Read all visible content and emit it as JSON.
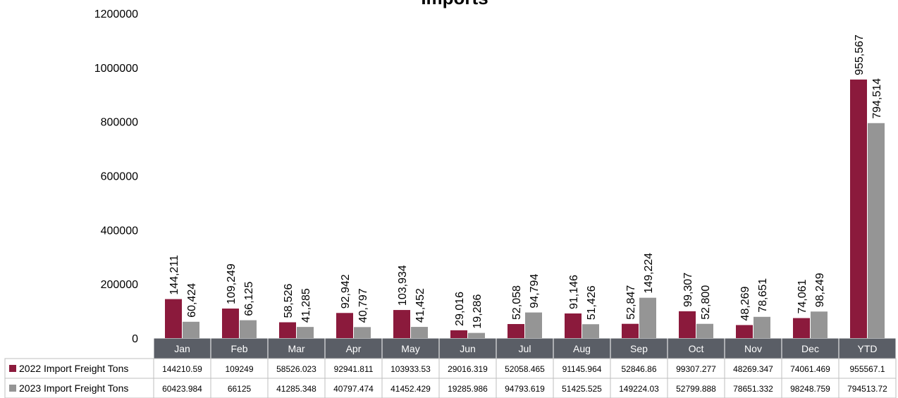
{
  "title": "Imports",
  "chart_data": {
    "type": "bar",
    "title": "Imports",
    "categories": [
      "Jan",
      "Feb",
      "Mar",
      "Apr",
      "May",
      "Jun",
      "Jul",
      "Aug",
      "Sep",
      "Oct",
      "Nov",
      "Dec",
      "YTD"
    ],
    "ylim": [
      0,
      1200000
    ],
    "yticks": [
      "0",
      "200000",
      "400000",
      "600000",
      "800000",
      "1000000",
      "1200000"
    ],
    "grid": false,
    "legend": "data-table-left",
    "series": [
      {
        "name": "2022 Import Freight Tons",
        "color": "#8B1A3C",
        "values": [
          144210.59,
          109249,
          58526.023,
          92941.811,
          103933.53,
          29016.319,
          52058.465,
          91145.964,
          52846.86,
          99307.277,
          48269.347,
          74061.469,
          955567.1
        ],
        "table_values": [
          "144210.59",
          "109249",
          "58526.023",
          "92941.811",
          "103933.53",
          "29016.319",
          "52058.465",
          "91145.964",
          "52846.86",
          "99307.277",
          "48269.347",
          "74061.469",
          "955567.1"
        ],
        "labels": [
          "144,211",
          "109,249",
          "58,526",
          "92,942",
          "103,934",
          "29,016",
          "52,058",
          "91,146",
          "52,847",
          "99,307",
          "48,269",
          "74,061",
          "955,567"
        ]
      },
      {
        "name": "2023 Import Freight Tons",
        "color": "#959595",
        "values": [
          60423.984,
          66125,
          41285.348,
          40797.474,
          41452.429,
          19285.986,
          94793.619,
          51425.525,
          149224.03,
          52799.888,
          78651.332,
          98248.759,
          794513.72
        ],
        "table_values": [
          "60423.984",
          "66125",
          "41285.348",
          "40797.474",
          "41452.429",
          "19285.986",
          "94793.619",
          "51425.525",
          "149224.03",
          "52799.888",
          "78651.332",
          "98248.759",
          "794513.72"
        ],
        "labels": [
          "60,424",
          "66,125",
          "41,285",
          "40,797",
          "41,452",
          "19,286",
          "94,794",
          "51,426",
          "149,224",
          "52,800",
          "78,651",
          "98,249",
          "794,514"
        ]
      }
    ]
  }
}
